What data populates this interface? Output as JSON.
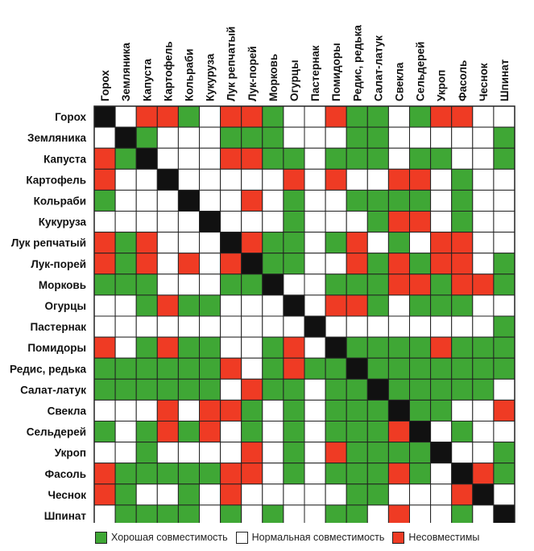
{
  "chart_data": {
    "type": "heatmap",
    "columns": [
      "Горох",
      "Земляника",
      "Капуста",
      "Картофель",
      "Кольраби",
      "Кукуруза",
      "Лук репчатый",
      "Лук-порей",
      "Морковь",
      "Огурцы",
      "Пастернак",
      "Помидоры",
      "Редис, редька",
      "Салат-латук",
      "Свекла",
      "Сельдерей",
      "Укроп",
      "Фасоль",
      "Чеснок",
      "Шпинат"
    ],
    "rows": [
      "Горох",
      "Земляника",
      "Капуста",
      "Картофель",
      "Кольраби",
      "Кукуруза",
      "Лук репчатый",
      "Лук-порей",
      "Морковь",
      "Огурцы",
      "Пастернак",
      "Помидоры",
      "Редис, редька",
      "Салат-латук",
      "Свекла",
      "Сельдерей",
      "Укроп",
      "Фасоль",
      "Чеснок",
      "Шпинат"
    ],
    "codes": {
      "D": "diagonal",
      "G": "good",
      "W": "normal",
      "R": "incompatible"
    },
    "matrix": [
      "DWRRGWRRGWWRGGWGRRWW",
      "WDGWWWGGGWWWGGWWWWWG",
      "RGDWWWRRGGWGGGWGGWWG",
      "RWWDWWWWWRWRWWRRWGWW",
      "GWWWDWWRWGWWGGGGWGWW",
      "WWWWWDWWWGWWWGRRWGWW",
      "RGRWWWDRGGWGRWGWRRWW",
      "RGRWRWRDGGWWRGRGRRWG",
      "GGGWWWGGDWWGGGRRGRRG",
      "WWGRGGWWWDWRRGWGGGWW",
      "WWWWWWWWWWDWWWWWWWWG",
      "RWGRGGWWGRWDGGGGRGGG",
      "GGGGGGRWGRGGDGGGGGGG",
      "GGGGGGWRGGWGGDGGGGGW",
      "WWWRWRRGWGWGGGDGGWWR",
      "GWGRGRWGWGWGGGRDWGWW",
      "WWGWWWWRWGWRGGGGDWWG",
      "RGGGGGRRWGWGGGRGWDRG",
      "RGWWGWRWWWWWGGWWWRDW",
      "WGGGGWGWGWWGGWRWWGWD"
    ],
    "colors": {
      "good": "#3fa735",
      "normal": "#ffffff",
      "incompatible": "#ef3b24",
      "diagonal": "#111111",
      "grid": "#222222"
    },
    "legend": [
      {
        "key": "good",
        "label": "Хорошая совместимость"
      },
      {
        "key": "normal",
        "label": "Нормальная совместимость"
      },
      {
        "key": "incompatible",
        "label": "Несовместимы"
      }
    ]
  }
}
